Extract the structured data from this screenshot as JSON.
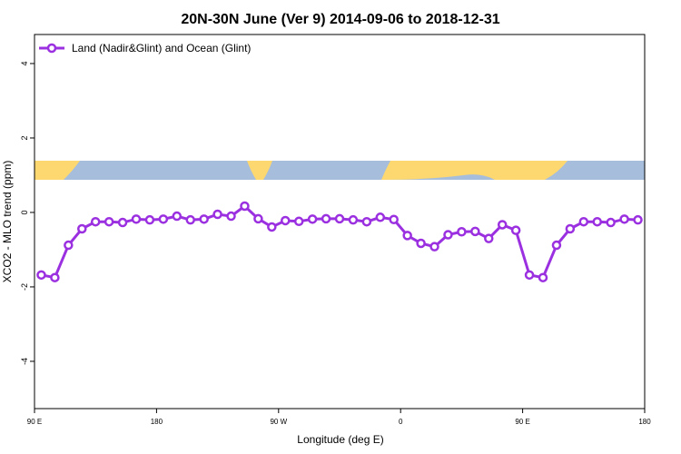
{
  "chart_data": {
    "type": "line",
    "title": "20N-30N June (Ver 9)   2014-09-06 to 2018-12-31",
    "x_label": "Longitude (deg E)",
    "y_label": "XCO2 - MLO trend (ppm)",
    "x": [
      95,
      105,
      115,
      125,
      135,
      145,
      155,
      165,
      175,
      185,
      195,
      205,
      215,
      225,
      235,
      245,
      255,
      265,
      275,
      285,
      295,
      305,
      315,
      325,
      335,
      345,
      355,
      365,
      375,
      385,
      395,
      405,
      415,
      425,
      435,
      445,
      455,
      465,
      475,
      485,
      495,
      505,
      515,
      525,
      535
    ],
    "series": [
      {
        "name": "Land (Nadir&Glint) and Ocean (Glint)",
        "color": "#9b30e0",
        "values": [
          -1.68,
          -1.75,
          -0.88,
          -0.44,
          -0.25,
          -0.25,
          -0.27,
          -0.18,
          -0.2,
          -0.18,
          -0.1,
          -0.2,
          -0.18,
          -0.05,
          -0.1,
          0.17,
          -0.17,
          -0.39,
          -0.22,
          -0.24,
          -0.18,
          -0.17,
          -0.17,
          -0.2,
          -0.25,
          -0.13,
          -0.19,
          -0.62,
          -0.83,
          -0.92,
          -0.6,
          -0.52,
          -0.51,
          -0.7,
          -0.33,
          -0.48,
          -1.68,
          -1.75,
          -0.88,
          -0.44,
          -0.25,
          -0.25,
          -0.27,
          -0.18,
          -0.2
        ]
      }
    ],
    "xlim": [
      90,
      540
    ],
    "xticks": [
      {
        "value": 90,
        "label": "90 E"
      },
      {
        "value": 180,
        "label": "180"
      },
      {
        "value": 270,
        "label": "90 W"
      },
      {
        "value": 360,
        "label": "0"
      },
      {
        "value": 450,
        "label": "90 E"
      },
      {
        "value": 540,
        "label": "180"
      }
    ],
    "ylim": [
      -5.27,
      4.78
    ],
    "yticks": [
      -4,
      -2,
      0,
      2,
      4
    ],
    "legend": "top-left"
  }
}
